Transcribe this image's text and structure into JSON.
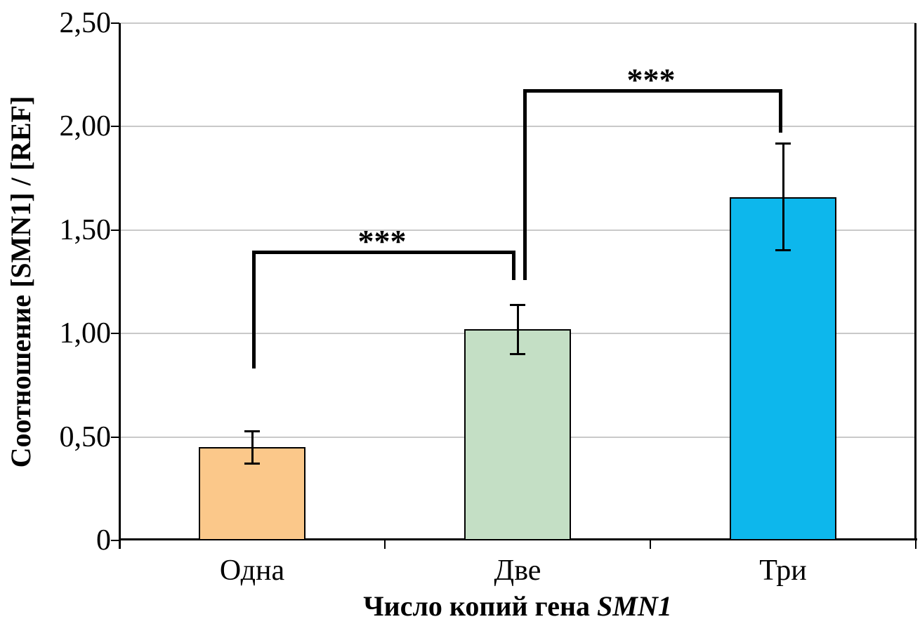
{
  "figure": {
    "background": "#FFFFFF",
    "kind": "scientific bar chart with error bars and significance brackets"
  },
  "chart_data": {
    "type": "bar",
    "title": "",
    "categories": [
      "Одна",
      "Две",
      "Три"
    ],
    "values": [
      0.45,
      1.02,
      1.66
    ],
    "error_bars": [
      0.08,
      0.12,
      0.26
    ],
    "bar_colors": [
      "#FBC88A",
      "#C4DFC5",
      "#0DB7EC"
    ],
    "bar_border_color": "#000000",
    "xlabel": "Число копий гена SMN1",
    "xlabel_parts": [
      {
        "text": "Число копий гена ",
        "italic": false
      },
      {
        "text": "SMN1",
        "italic": true
      }
    ],
    "ylabel": "Соотношение [SMN1] / [REF]",
    "ylim": [
      0,
      2.5
    ],
    "ytick_values": [
      0,
      0.5,
      1.0,
      1.5,
      2.0,
      2.5
    ],
    "ytick_labels": [
      "0",
      "0,50",
      "1,00",
      "1,50",
      "2,00",
      "2,50"
    ],
    "grid": "horizontal",
    "gridline_color": "#C9C9C9",
    "axis_color": "#000000",
    "legend": "none",
    "significance_brackets": [
      {
        "label": "***",
        "from_category": "Одна",
        "to_category": "Две",
        "y": 1.4,
        "left_tail_y": 0.83,
        "right_tail_y": 1.26
      },
      {
        "label": "***",
        "from_category": "Две",
        "to_category": "Три",
        "y": 2.18,
        "left_tail_y": 1.26,
        "right_tail_y": 1.97
      }
    ]
  }
}
